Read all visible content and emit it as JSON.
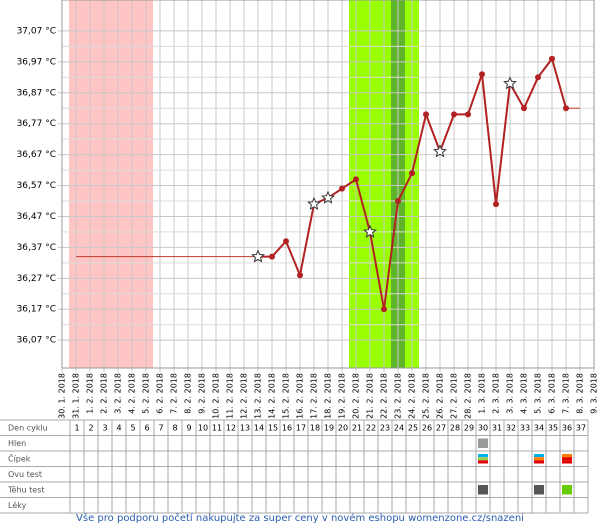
{
  "chart_data": {
    "type": "line",
    "x": [
      "30. 1. 2018",
      "31. 1. 2018",
      "1. 2. 2018",
      "2. 2. 2018",
      "3. 2. 2018",
      "4. 2. 2018",
      "5. 2. 2018",
      "6. 2. 2018",
      "7. 2. 2018",
      "8. 2. 2018",
      "9. 2. 2018",
      "10. 2. 2018",
      "11. 2. 2018",
      "12. 2. 2018",
      "13. 2. 2018",
      "14. 2. 2018",
      "15. 2. 2018",
      "16. 2. 2018",
      "17. 2. 2018",
      "18. 2. 2018",
      "19. 2. 2018",
      "20. 2. 2018",
      "21. 2. 2018",
      "22. 2. 2018",
      "23. 2. 2018",
      "24. 2. 2018",
      "25. 2. 2018",
      "26. 2. 2018",
      "27. 2. 2018",
      "28. 2. 2018",
      "1. 3. 2018",
      "2. 3. 2018",
      "3. 3. 2018",
      "4. 3. 2018",
      "5. 3. 2018",
      "6. 3. 2018",
      "7. 3. 2018",
      "8. 3. 2018",
      "9. 3. 2018"
    ],
    "series": [
      {
        "color": "#c0392b",
        "style": "thin",
        "values": [
          null,
          36.34,
          36.34,
          36.34,
          36.34,
          36.34,
          36.34,
          36.34,
          36.34,
          36.34,
          36.34,
          36.34,
          36.34,
          36.34,
          36.34,
          null,
          null,
          null,
          null,
          null,
          null,
          null,
          null,
          null,
          null,
          null,
          null,
          null,
          null,
          null,
          null,
          null,
          null,
          null,
          null,
          null,
          36.82,
          36.82,
          null
        ]
      },
      {
        "color": "#b22222",
        "style": "main",
        "values": [
          null,
          null,
          null,
          null,
          null,
          null,
          null,
          null,
          null,
          null,
          null,
          null,
          null,
          null,
          36.34,
          36.34,
          36.39,
          36.28,
          36.51,
          36.53,
          36.56,
          36.59,
          36.42,
          36.17,
          36.52,
          36.61,
          36.8,
          36.68,
          36.8,
          36.8,
          36.93,
          36.51,
          36.9,
          36.82,
          36.92,
          36.98,
          36.82,
          null,
          null
        ],
        "markers": [
          null,
          null,
          null,
          null,
          null,
          null,
          null,
          null,
          null,
          null,
          null,
          null,
          null,
          null,
          "star",
          "dot",
          "dot",
          "dot",
          "star",
          "star",
          "dot",
          "dot",
          "star",
          "dot",
          "dot",
          "dot",
          "dot",
          "star",
          "dot",
          "dot",
          "dot",
          "dot",
          "star",
          "dot",
          "dot",
          "dot",
          "dot",
          null,
          null
        ]
      }
    ],
    "ylim": [
      35.98,
      37.17
    ],
    "yticks": [
      {
        "value": 36.07,
        "label": "36,07 °C"
      },
      {
        "value": 36.17,
        "label": "36,17 °C"
      },
      {
        "value": 36.27,
        "label": "36,27 °C"
      },
      {
        "value": 36.37,
        "label": "36,37 °C"
      },
      {
        "value": 36.47,
        "label": "36,47 °C"
      },
      {
        "value": 36.57,
        "label": "36,57 °C"
      },
      {
        "value": 36.67,
        "label": "36,67 °C"
      },
      {
        "value": 36.77,
        "label": "36,77 °C"
      },
      {
        "value": 36.87,
        "label": "36,87 °C"
      },
      {
        "value": 36.97,
        "label": "36,97 °C"
      },
      {
        "value": 37.07,
        "label": "37,07 °C"
      }
    ],
    "bands": [
      {
        "from": 1,
        "to": 6,
        "color": "#ffc4c4"
      },
      {
        "from": 21,
        "to": 25,
        "color": "#99ff00"
      },
      {
        "from": 24,
        "to": 24,
        "color": "#5fb52a"
      }
    ],
    "grid": true
  },
  "cycle_table": {
    "rows": [
      "Den cyklu",
      "Hlen",
      "Čípek",
      "Ovu test",
      "Těhu test",
      "Léky"
    ],
    "days": [
      1,
      2,
      3,
      4,
      5,
      6,
      7,
      8,
      9,
      10,
      11,
      12,
      13,
      14,
      15,
      16,
      17,
      18,
      19,
      20,
      21,
      22,
      23,
      24,
      25,
      26,
      27,
      28,
      29,
      30,
      31,
      32,
      33,
      34,
      35,
      36,
      37
    ],
    "icons": [
      {
        "row": 1,
        "day": 30,
        "colors": [
          "#999999"
        ]
      },
      {
        "row": 2,
        "day": 30,
        "colors": [
          "#00b0f0",
          "#92d050",
          "#e00000"
        ]
      },
      {
        "row": 2,
        "day": 34,
        "colors": [
          "#00b0f0",
          "#ff8000",
          "#e00000"
        ]
      },
      {
        "row": 2,
        "day": 36,
        "colors": [
          "#ff8000",
          "#e00000",
          "#e00000"
        ]
      },
      {
        "row": 4,
        "day": 30,
        "colors": [
          "#555555"
        ]
      },
      {
        "row": 4,
        "day": 34,
        "colors": [
          "#555555"
        ]
      },
      {
        "row": 4,
        "day": 36,
        "colors": [
          "#66cc00"
        ]
      }
    ]
  },
  "footer": "Vše pro podporu početí nakupujte za super ceny v novém eshopu womenzone.cz/snazeni"
}
